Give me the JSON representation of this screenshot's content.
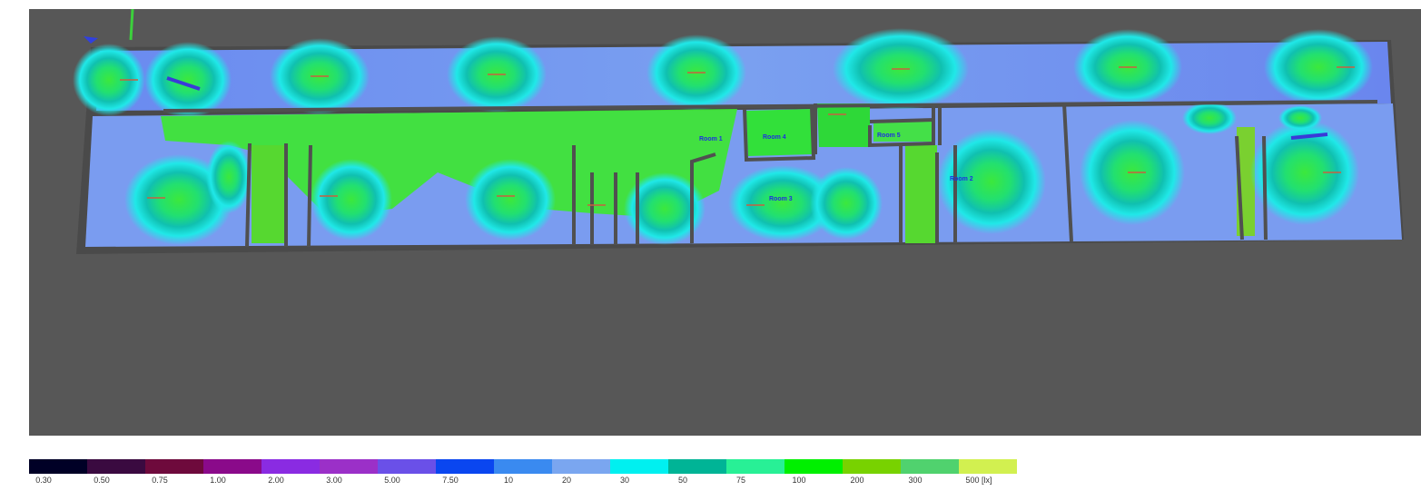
{
  "viewport": {
    "background": "#575757"
  },
  "rooms": [
    {
      "id": "room-1",
      "label": "Room 1"
    },
    {
      "id": "room-4",
      "label": "Room 4"
    },
    {
      "id": "room-5",
      "label": "Room 5"
    },
    {
      "id": "room-3",
      "label": "Room 3"
    },
    {
      "id": "room-2",
      "label": "Room 2"
    }
  ],
  "legend": {
    "unit": "[lx]",
    "colors": [
      "#000026",
      "#3a0a40",
      "#6e0a3c",
      "#8a0a8a",
      "#8a2be2",
      "#9b30c8",
      "#6a50e8",
      "#0a46f0",
      "#3a8af0",
      "#7aa6f0",
      "#00f0f0",
      "#00b496",
      "#28f096",
      "#00f000",
      "#78d200",
      "#50d26e",
      "#d2f050"
    ],
    "ticks": [
      "0.30",
      "0.50",
      "0.75",
      "1.00",
      "2.00",
      "3.00",
      "5.00",
      "7.50",
      "10",
      "20",
      "30",
      "50",
      "75",
      "100",
      "200",
      "300",
      "500 [lx]"
    ]
  }
}
